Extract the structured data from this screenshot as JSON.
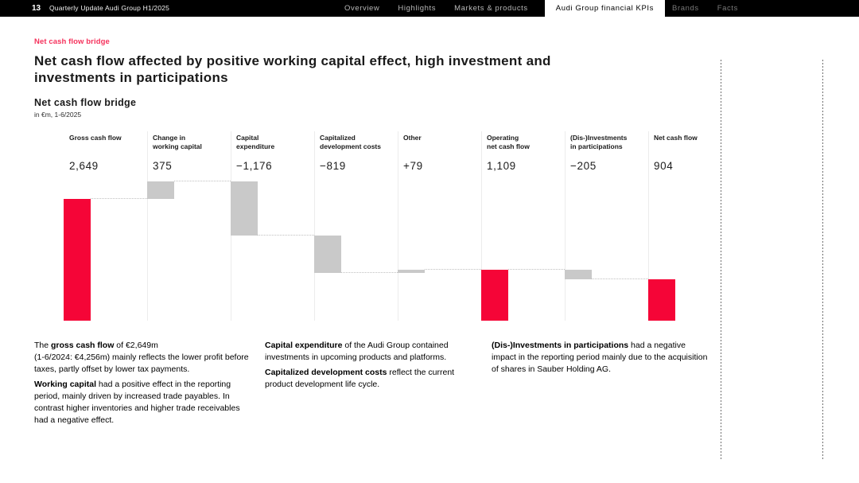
{
  "topbar": {
    "page_number": "13",
    "deck_title": "Quarterly Update Audi Group H1/2025",
    "tabs": [
      {
        "label": "Overview",
        "active": false
      },
      {
        "label": "Highlights",
        "active": false
      },
      {
        "label": "Markets & products",
        "active": false
      },
      {
        "label": "Audi Group financial KPIs",
        "active": true
      },
      {
        "label": "Brands",
        "active": false
      },
      {
        "label": "Facts",
        "active": false
      }
    ]
  },
  "header": {
    "eyebrow": "Net cash flow bridge",
    "title_line1": "Net cash flow affected by positive working capital effect, high investment and",
    "title_line2": "investments in participations"
  },
  "chart_header": {
    "title": "Net cash flow bridge",
    "unit": "in €m, 1-6/2025"
  },
  "chart_data": {
    "type": "bar",
    "subtype": "waterfall",
    "title": "Net cash flow bridge",
    "unit": "€m",
    "period": "1-6/2025",
    "ylim": [
      0,
      3024
    ],
    "grid": false,
    "colors": {
      "total": "#f50537",
      "delta": "#c9c9c9"
    },
    "bars": [
      {
        "label_lines": [
          "Gross cash flow"
        ],
        "display": "2,649",
        "value": 2649,
        "kind": "total"
      },
      {
        "label_lines": [
          "Change in",
          "working capital"
        ],
        "display": "375",
        "value": 375,
        "kind": "delta"
      },
      {
        "label_lines": [
          "Capital",
          "expenditure"
        ],
        "display": "−1,176",
        "value": -1176,
        "kind": "delta"
      },
      {
        "label_lines": [
          "Capitalized",
          "development costs"
        ],
        "display": "−819",
        "value": -819,
        "kind": "delta"
      },
      {
        "label_lines": [
          "Other"
        ],
        "display": "+79",
        "value": 79,
        "kind": "delta"
      },
      {
        "label_lines": [
          "Operating",
          "net cash flow"
        ],
        "display": "1,109",
        "value": 1109,
        "kind": "total"
      },
      {
        "label_lines": [
          "(Dis-)Investments",
          "in participations"
        ],
        "display": "−205",
        "value": -205,
        "kind": "delta"
      },
      {
        "label_lines": [
          "Net cash flow"
        ],
        "display": "904",
        "value": 904,
        "kind": "total"
      }
    ]
  },
  "commentary": {
    "col1": {
      "p1": {
        "pre": "The ",
        "bold": "gross cash flow",
        "rest": " of €2,649m\n(1-6/2024: €4,256m) mainly reflects the lower profit before taxes, partly offset by lower tax payments."
      },
      "p2": {
        "pre": "",
        "bold": "Working capital",
        "rest": " had a positive effect in the reporting period, mainly driven by increased trade payables. In contrast higher inventories and higher trade receivables had a negative effect."
      }
    },
    "col2": {
      "p1": {
        "pre": "",
        "bold": "Capital expenditure",
        "rest": " of the Audi Group contained investments in upcoming products and platforms."
      },
      "p2": {
        "pre": "",
        "bold": "Capitalized development costs",
        "rest": " reflect the current product development life cycle."
      }
    },
    "col3": {
      "p1": {
        "pre": "",
        "bold": "(Dis-)Investments in participations",
        "rest": " had a negative impact in the reporting period mainly due to the acquisition of shares in Sauber Holding AG."
      }
    }
  }
}
